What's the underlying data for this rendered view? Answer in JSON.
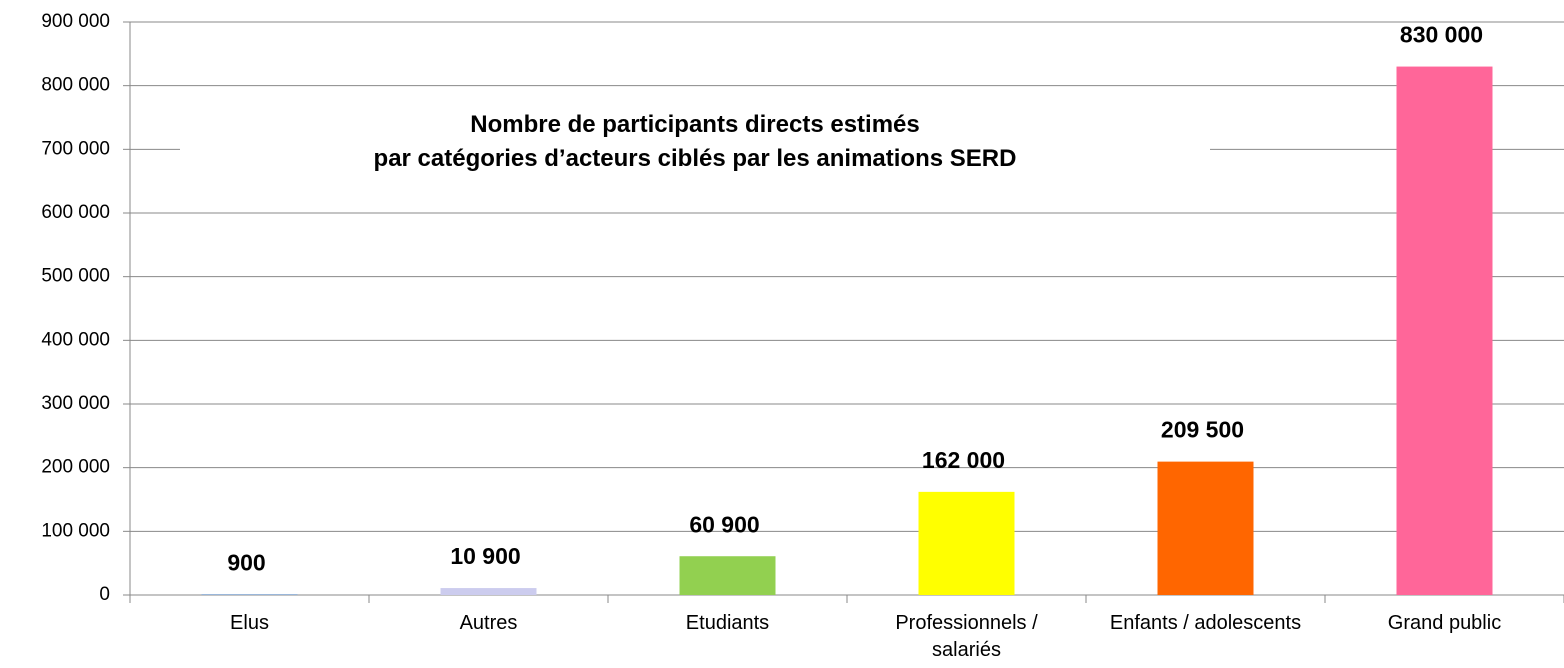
{
  "chart_data": {
    "type": "bar",
    "title": [
      "Nombre de participants directs estimés",
      "par catégories d’acteurs ciblés par les animations SERD"
    ],
    "categories": [
      "Elus",
      "Autres",
      "Etudiants",
      "Professionnels / salariés",
      "Enfants / adolescents",
      "Grand public"
    ],
    "values": [
      900,
      10900,
      60900,
      162000,
      209500,
      830000
    ],
    "value_labels": [
      "900",
      "10 900",
      "60 900",
      "162 000",
      "209 500",
      "830 000"
    ],
    "colors": [
      "#4f81bd",
      "#ccccee",
      "#92d050",
      "#ffff00",
      "#ff6600",
      "#ff6699"
    ],
    "ylim": [
      0,
      900000
    ],
    "yticks": [
      0,
      {
        "value": 100000,
        "label": "100 000"
      },
      {
        "value": 200000,
        "label": "200 000"
      },
      {
        "value": 300000,
        "label": "300 000"
      },
      {
        "value": 400000,
        "label": "400 000"
      },
      {
        "value": 500000,
        "label": "500 000"
      },
      {
        "value": 600000,
        "label": "600 000"
      },
      {
        "value": 700000,
        "label": "700 000"
      },
      {
        "value": 800000,
        "label": "800 000"
      },
      {
        "value": 900000,
        "label": "900 000"
      }
    ],
    "grid": true
  }
}
